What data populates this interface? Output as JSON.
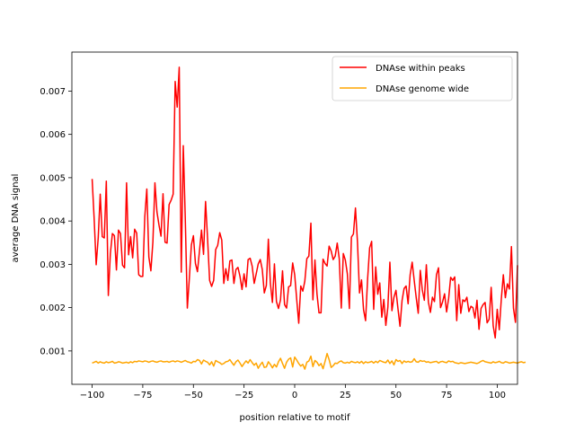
{
  "chart_data": {
    "type": "line",
    "xlabel": "position relative to motif",
    "ylabel": "average DNA signal",
    "xlim": [
      -110,
      110
    ],
    "ylim": [
      0.00023,
      0.0079
    ],
    "xticks": [
      -100,
      -75,
      -50,
      -25,
      0,
      25,
      50,
      75,
      100
    ],
    "xtick_labels": [
      "−100",
      "−75",
      "−50",
      "−25",
      "0",
      "25",
      "50",
      "75",
      "100"
    ],
    "yticks": [
      0.001,
      0.002,
      0.003,
      0.004,
      0.005,
      0.006,
      0.007
    ],
    "ytick_labels": [
      "0.001",
      "0.002",
      "0.003",
      "0.004",
      "0.005",
      "0.006",
      "0.007"
    ],
    "grid": false,
    "legend_position": "top-right",
    "x_start": -100,
    "x_step": 1,
    "series": [
      {
        "name": "DNAse within peaks",
        "color": "#ff0000",
        "values": [
          0.00497,
          0.00405,
          0.00299,
          0.00361,
          0.00462,
          0.00364,
          0.00361,
          0.00492,
          0.00228,
          0.00325,
          0.00371,
          0.00366,
          0.00287,
          0.00379,
          0.00371,
          0.00298,
          0.00292,
          0.00488,
          0.00322,
          0.00364,
          0.00315,
          0.00381,
          0.00372,
          0.00276,
          0.00272,
          0.00272,
          0.0041,
          0.00474,
          0.00317,
          0.00285,
          0.00352,
          0.00488,
          0.00421,
          0.00391,
          0.00365,
          0.00463,
          0.00351,
          0.00349,
          0.00438,
          0.00448,
          0.00462,
          0.00722,
          0.00663,
          0.00755,
          0.00282,
          0.00574,
          0.00403,
          0.00199,
          0.00268,
          0.00345,
          0.00366,
          0.00302,
          0.00283,
          0.00331,
          0.00379,
          0.00323,
          0.00445,
          0.00359,
          0.00263,
          0.00249,
          0.00263,
          0.00334,
          0.00344,
          0.00373,
          0.00356,
          0.00256,
          0.0029,
          0.00263,
          0.00308,
          0.0031,
          0.00256,
          0.00288,
          0.00293,
          0.00272,
          0.00242,
          0.00278,
          0.00248,
          0.00311,
          0.00314,
          0.00296,
          0.00256,
          0.00278,
          0.00301,
          0.00311,
          0.00288,
          0.00234,
          0.00251,
          0.00358,
          0.00256,
          0.00212,
          0.00301,
          0.00214,
          0.00198,
          0.00218,
          0.00285,
          0.00207,
          0.00199,
          0.00248,
          0.00251,
          0.00303,
          0.00276,
          0.00219,
          0.00164,
          0.0025,
          0.00238,
          0.00261,
          0.00313,
          0.00319,
          0.00395,
          0.00218,
          0.0031,
          0.00232,
          0.00188,
          0.00188,
          0.00312,
          0.00302,
          0.00296,
          0.00342,
          0.00331,
          0.00311,
          0.00319,
          0.00349,
          0.00313,
          0.00199,
          0.00325,
          0.0031,
          0.00278,
          0.00198,
          0.00363,
          0.0037,
          0.0043,
          0.00351,
          0.00234,
          0.00264,
          0.00195,
          0.0017,
          0.00266,
          0.00338,
          0.00353,
          0.00196,
          0.00294,
          0.00231,
          0.00257,
          0.00178,
          0.00219,
          0.00159,
          0.00201,
          0.00305,
          0.00193,
          0.00224,
          0.0024,
          0.00197,
          0.00157,
          0.00216,
          0.00244,
          0.0025,
          0.00209,
          0.00276,
          0.00305,
          0.00263,
          0.00223,
          0.00187,
          0.00286,
          0.00241,
          0.00217,
          0.00299,
          0.00213,
          0.00189,
          0.00224,
          0.00214,
          0.00276,
          0.00292,
          0.002,
          0.00213,
          0.00232,
          0.0019,
          0.00221,
          0.0027,
          0.00263,
          0.00271,
          0.0017,
          0.00253,
          0.00187,
          0.00218,
          0.00214,
          0.00224,
          0.00191,
          0.00203,
          0.002,
          0.00176,
          0.00217,
          0.0015,
          0.00198,
          0.00207,
          0.00212,
          0.00165,
          0.00173,
          0.00247,
          0.00158,
          0.0013,
          0.00196,
          0.00149,
          0.00219,
          0.00276,
          0.00223,
          0.00255,
          0.00243,
          0.00341,
          0.00199,
          0.00166,
          0.00298
        ]
      },
      {
        "name": "DNAse genome wide",
        "color": "#ffa500",
        "values": [
          0.00072,
          0.00074,
          0.00076,
          0.00072,
          0.00075,
          0.00073,
          0.00072,
          0.00075,
          0.00073,
          0.00074,
          0.00076,
          0.00072,
          0.00073,
          0.00075,
          0.00074,
          0.00072,
          0.00073,
          0.00074,
          0.00072,
          0.00075,
          0.00073,
          0.00076,
          0.00075,
          0.00077,
          0.00076,
          0.00075,
          0.00077,
          0.00076,
          0.00074,
          0.00076,
          0.00077,
          0.00075,
          0.00074,
          0.00076,
          0.00077,
          0.00075,
          0.00075,
          0.00076,
          0.00074,
          0.00076,
          0.00077,
          0.00075,
          0.00077,
          0.00076,
          0.00074,
          0.00076,
          0.00078,
          0.00075,
          0.00074,
          0.00072,
          0.00076,
          0.00075,
          0.0008,
          0.00078,
          0.0007,
          0.00079,
          0.00076,
          0.00074,
          0.00068,
          0.00075,
          0.00065,
          0.00078,
          0.00075,
          0.00073,
          0.00069,
          0.00071,
          0.00075,
          0.00076,
          0.0008,
          0.00073,
          0.00067,
          0.00075,
          0.00079,
          0.00072,
          0.00064,
          0.00071,
          0.00077,
          0.00072,
          0.0008,
          0.00073,
          0.00067,
          0.00072,
          0.0006,
          0.00068,
          0.00074,
          0.00062,
          0.00063,
          0.00075,
          0.00069,
          0.00061,
          0.00069,
          0.00063,
          0.00075,
          0.00083,
          0.00071,
          0.0006,
          0.00074,
          0.00081,
          0.00084,
          0.00063,
          0.00086,
          0.00079,
          0.00071,
          0.00065,
          0.00069,
          0.00058,
          0.00074,
          0.00077,
          0.00088,
          0.00064,
          0.00078,
          0.00074,
          0.00066,
          0.00071,
          0.00059,
          0.00076,
          0.00094,
          0.0008,
          0.00062,
          0.00066,
          0.00072,
          0.00071,
          0.00075,
          0.00077,
          0.00073,
          0.00072,
          0.00074,
          0.00072,
          0.00076,
          0.00074,
          0.00073,
          0.00075,
          0.00072,
          0.00076,
          0.00071,
          0.00075,
          0.00073,
          0.00074,
          0.00076,
          0.00072,
          0.00076,
          0.00073,
          0.00078,
          0.00076,
          0.00074,
          0.00073,
          0.00079,
          0.00071,
          0.00077,
          0.00068,
          0.0008,
          0.00076,
          0.00078,
          0.00071,
          0.00077,
          0.00074,
          0.00076,
          0.00074,
          0.00075,
          0.00082,
          0.00075,
          0.00074,
          0.00078,
          0.00076,
          0.00077,
          0.00074,
          0.00075,
          0.00073,
          0.00074,
          0.00075,
          0.00076,
          0.00072,
          0.00075,
          0.00076,
          0.00074,
          0.00073,
          0.00077,
          0.00075,
          0.00076,
          0.00073,
          0.00072,
          0.00071,
          0.00073,
          0.00072,
          0.00071,
          0.00072,
          0.00073,
          0.00074,
          0.00073,
          0.00072,
          0.00071,
          0.00073,
          0.00076,
          0.00078,
          0.00075,
          0.00074,
          0.00073,
          0.00072,
          0.00075,
          0.00073,
          0.00074,
          0.00076,
          0.00073,
          0.00072,
          0.00075,
          0.00074,
          0.00072,
          0.00073,
          0.00074,
          0.00073,
          0.00072,
          0.00074,
          0.00075,
          0.00073,
          0.00074
        ]
      }
    ]
  }
}
